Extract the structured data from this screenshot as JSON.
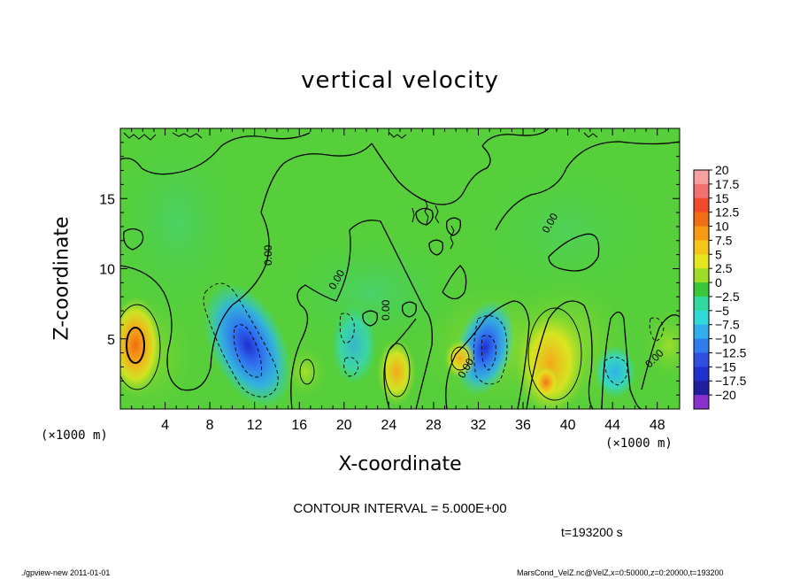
{
  "chart_data": {
    "type": "heatmap",
    "title": "vertical velocity",
    "xlabel": "X-coordinate",
    "ylabel": "Z-coordinate",
    "x_unit": "(×1000 m)",
    "y_unit": "(×1000 m)",
    "xlim": [
      0,
      50
    ],
    "ylim": [
      0,
      20
    ],
    "x_ticks": [
      "4",
      "8",
      "12",
      "16",
      "20",
      "24",
      "28",
      "32",
      "36",
      "40",
      "44",
      "48"
    ],
    "y_ticks": [
      "5",
      "10",
      "15"
    ],
    "contour_interval": "CONTOUR INTERVAL = 5.000E+00",
    "contour_labels": [
      "0.00",
      "0.00",
      "0.00",
      "0.00",
      "0.00",
      "0.00"
    ],
    "colorbar": {
      "levels": [
        "20",
        "17.5",
        "15",
        "12.5",
        "10",
        "7.5",
        "5",
        "2.5",
        "0",
        "−2.5",
        "−5",
        "−7.5",
        "−10",
        "−12.5",
        "−15",
        "−17.5",
        "−20"
      ],
      "colors": [
        "#f7a0a0",
        "#f47070",
        "#f24a2a",
        "#f26d12",
        "#f79a12",
        "#f5c51a",
        "#e6e61e",
        "#9fdc28",
        "#38c838",
        "#2fd9a0",
        "#2fd9d9",
        "#2fb0ec",
        "#2f7bf0",
        "#2f4fe0",
        "#1f2fd0",
        "#1f1fa0",
        "#8a2fd0"
      ]
    },
    "features": [
      {
        "type": "updraft",
        "x": 1.5,
        "z": 4.5,
        "value": 12
      },
      {
        "type": "downdraft",
        "x": 11,
        "z": 4.5,
        "value": -13
      },
      {
        "type": "downdraft",
        "x": 32.5,
        "z": 4.5,
        "value": -14
      },
      {
        "type": "updraft",
        "x": 38,
        "z": 3.5,
        "value": 8
      },
      {
        "type": "updraft",
        "x": 24.5,
        "z": 3.0,
        "value": 6
      },
      {
        "type": "downdraft",
        "x": 44,
        "z": 3.0,
        "value": -6
      }
    ]
  },
  "time_label": "t=193200 s",
  "footer_left": "./gpview-new   2011-01-01",
  "footer_right": "MarsCond_VelZ.nc@VelZ,x=0:50000,z=0:20000,t=193200"
}
